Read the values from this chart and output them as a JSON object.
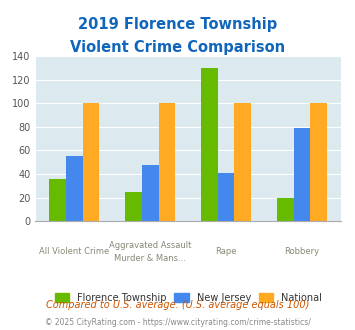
{
  "title_line1": "2019 Florence Township",
  "title_line2": "Violent Crime Comparison",
  "cat_labels_line1": [
    "All Violent Crime",
    "Aggravated Assault",
    "Rape",
    "Robbery"
  ],
  "cat_labels_line2": [
    "",
    "Murder & Mans...",
    "",
    ""
  ],
  "florence": [
    36,
    25,
    130,
    20
  ],
  "new_jersey": [
    55,
    48,
    41,
    79
  ],
  "national": [
    100,
    100,
    100,
    100
  ],
  "bar_colors": {
    "florence": "#66bb00",
    "new_jersey": "#4488ee",
    "national": "#ffaa22"
  },
  "legend_labels": [
    "Florence Township",
    "New Jersey",
    "National"
  ],
  "ylim": [
    0,
    140
  ],
  "yticks": [
    0,
    20,
    40,
    60,
    80,
    100,
    120,
    140
  ],
  "plot_bg": "#dce9ef",
  "fig_bg": "#ffffff",
  "title_color": "#1166bb",
  "axis_label_color": "#888877",
  "footnote1": "Compared to U.S. average. (U.S. average equals 100)",
  "footnote2": "© 2025 CityRating.com - https://www.cityrating.com/crime-statistics/",
  "footnote1_color": "#cc5500",
  "footnote2_color": "#888888"
}
